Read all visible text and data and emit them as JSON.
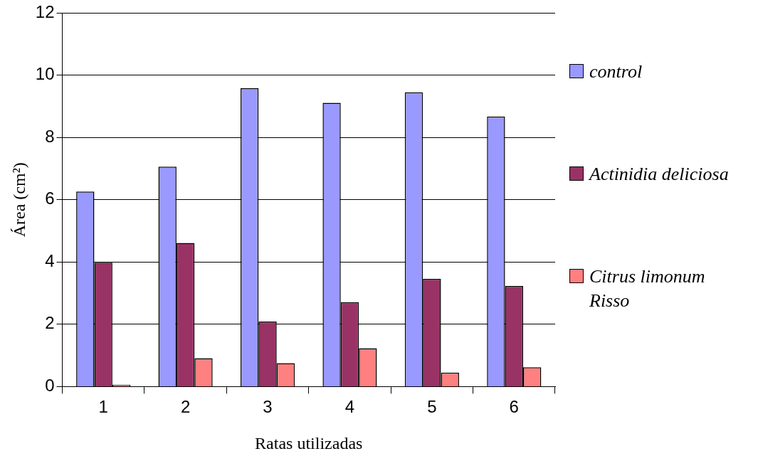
{
  "chart_data": {
    "type": "bar",
    "xlabel": "Ratas utilizadas",
    "ylabel": "Área (cm²)",
    "categories": [
      "1",
      "2",
      "3",
      "4",
      "5",
      "6"
    ],
    "series": [
      {
        "name": "control",
        "color": "#9999ff",
        "values": [
          6.26,
          7.06,
          9.58,
          9.11,
          9.45,
          8.67
        ]
      },
      {
        "name": "Actinidia deliciosa",
        "color": "#993366",
        "values": [
          3.98,
          4.61,
          2.09,
          2.71,
          3.46,
          3.23
        ]
      },
      {
        "name": "Citrus limonum Risso",
        "color": "#ff8080",
        "values": [
          0.06,
          0.91,
          0.75,
          1.23,
          0.45,
          0.62
        ]
      }
    ],
    "ylim": [
      0,
      12
    ],
    "yticks": [
      0,
      2,
      4,
      6,
      8,
      10,
      12
    ],
    "grid": "y",
    "legend": "right"
  }
}
